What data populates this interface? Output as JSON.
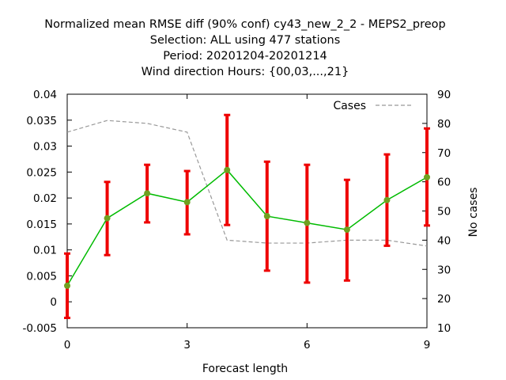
{
  "chart_data": {
    "type": "line",
    "title_lines": [
      "Normalized mean RMSE diff (90% conf) cy43_new_2_2 - MEPS2_preop",
      "Selection: ALL using   477 stations",
      "Period: 20201204-20201214",
      "Wind direction   Hours: {00,03,...,21}"
    ],
    "xlabel": "Forecast length",
    "ylabel": "",
    "y2label": "No cases",
    "xlim": [
      0,
      9
    ],
    "ylim": [
      -0.005,
      0.04
    ],
    "y2lim": [
      10,
      90
    ],
    "xticks": [
      0,
      3,
      6,
      9
    ],
    "xtick_labels": [
      "0",
      "3",
      "6",
      "9"
    ],
    "yticks": [
      -0.005,
      0,
      0.005,
      0.01,
      0.015,
      0.02,
      0.025,
      0.03,
      0.035,
      0.04
    ],
    "ytick_labels": [
      "-0.005",
      "0",
      "0.005",
      "0.01",
      "0.015",
      "0.02",
      "0.025",
      "0.03",
      "0.035",
      "0.04"
    ],
    "y2ticks": [
      10,
      20,
      30,
      40,
      50,
      60,
      70,
      80,
      90
    ],
    "y2tick_labels": [
      "10",
      "20",
      "30",
      "40",
      "50",
      "60",
      "70",
      "80",
      "90"
    ],
    "grid": false,
    "legend_position": "top-right",
    "series": [
      {
        "type": "line-errorbar",
        "axis": "left",
        "color": "#00bb00",
        "marker_color": "#70a020",
        "errorbar_color": "#ee0000",
        "x": [
          0,
          1,
          2,
          3,
          4,
          5,
          6,
          7,
          8,
          9
        ],
        "y": [
          0.0031,
          0.0161,
          0.0209,
          0.0192,
          0.0254,
          0.0165,
          0.0152,
          0.0139,
          0.0196,
          0.024
        ],
        "err_low": [
          -0.0031,
          0.009,
          0.0153,
          0.013,
          0.0148,
          0.006,
          0.0037,
          0.0041,
          0.0108,
          0.0147
        ],
        "err_high": [
          0.0093,
          0.0231,
          0.0264,
          0.0252,
          0.036,
          0.027,
          0.0264,
          0.0235,
          0.0284,
          0.0334
        ]
      },
      {
        "name": "Cases",
        "type": "line",
        "axis": "right",
        "color": "#999999",
        "dash": true,
        "x": [
          0,
          1,
          2,
          3,
          4,
          5,
          6,
          7,
          8,
          9
        ],
        "y": [
          77,
          81,
          80,
          77,
          40,
          39,
          39,
          40,
          40,
          38
        ]
      }
    ]
  }
}
